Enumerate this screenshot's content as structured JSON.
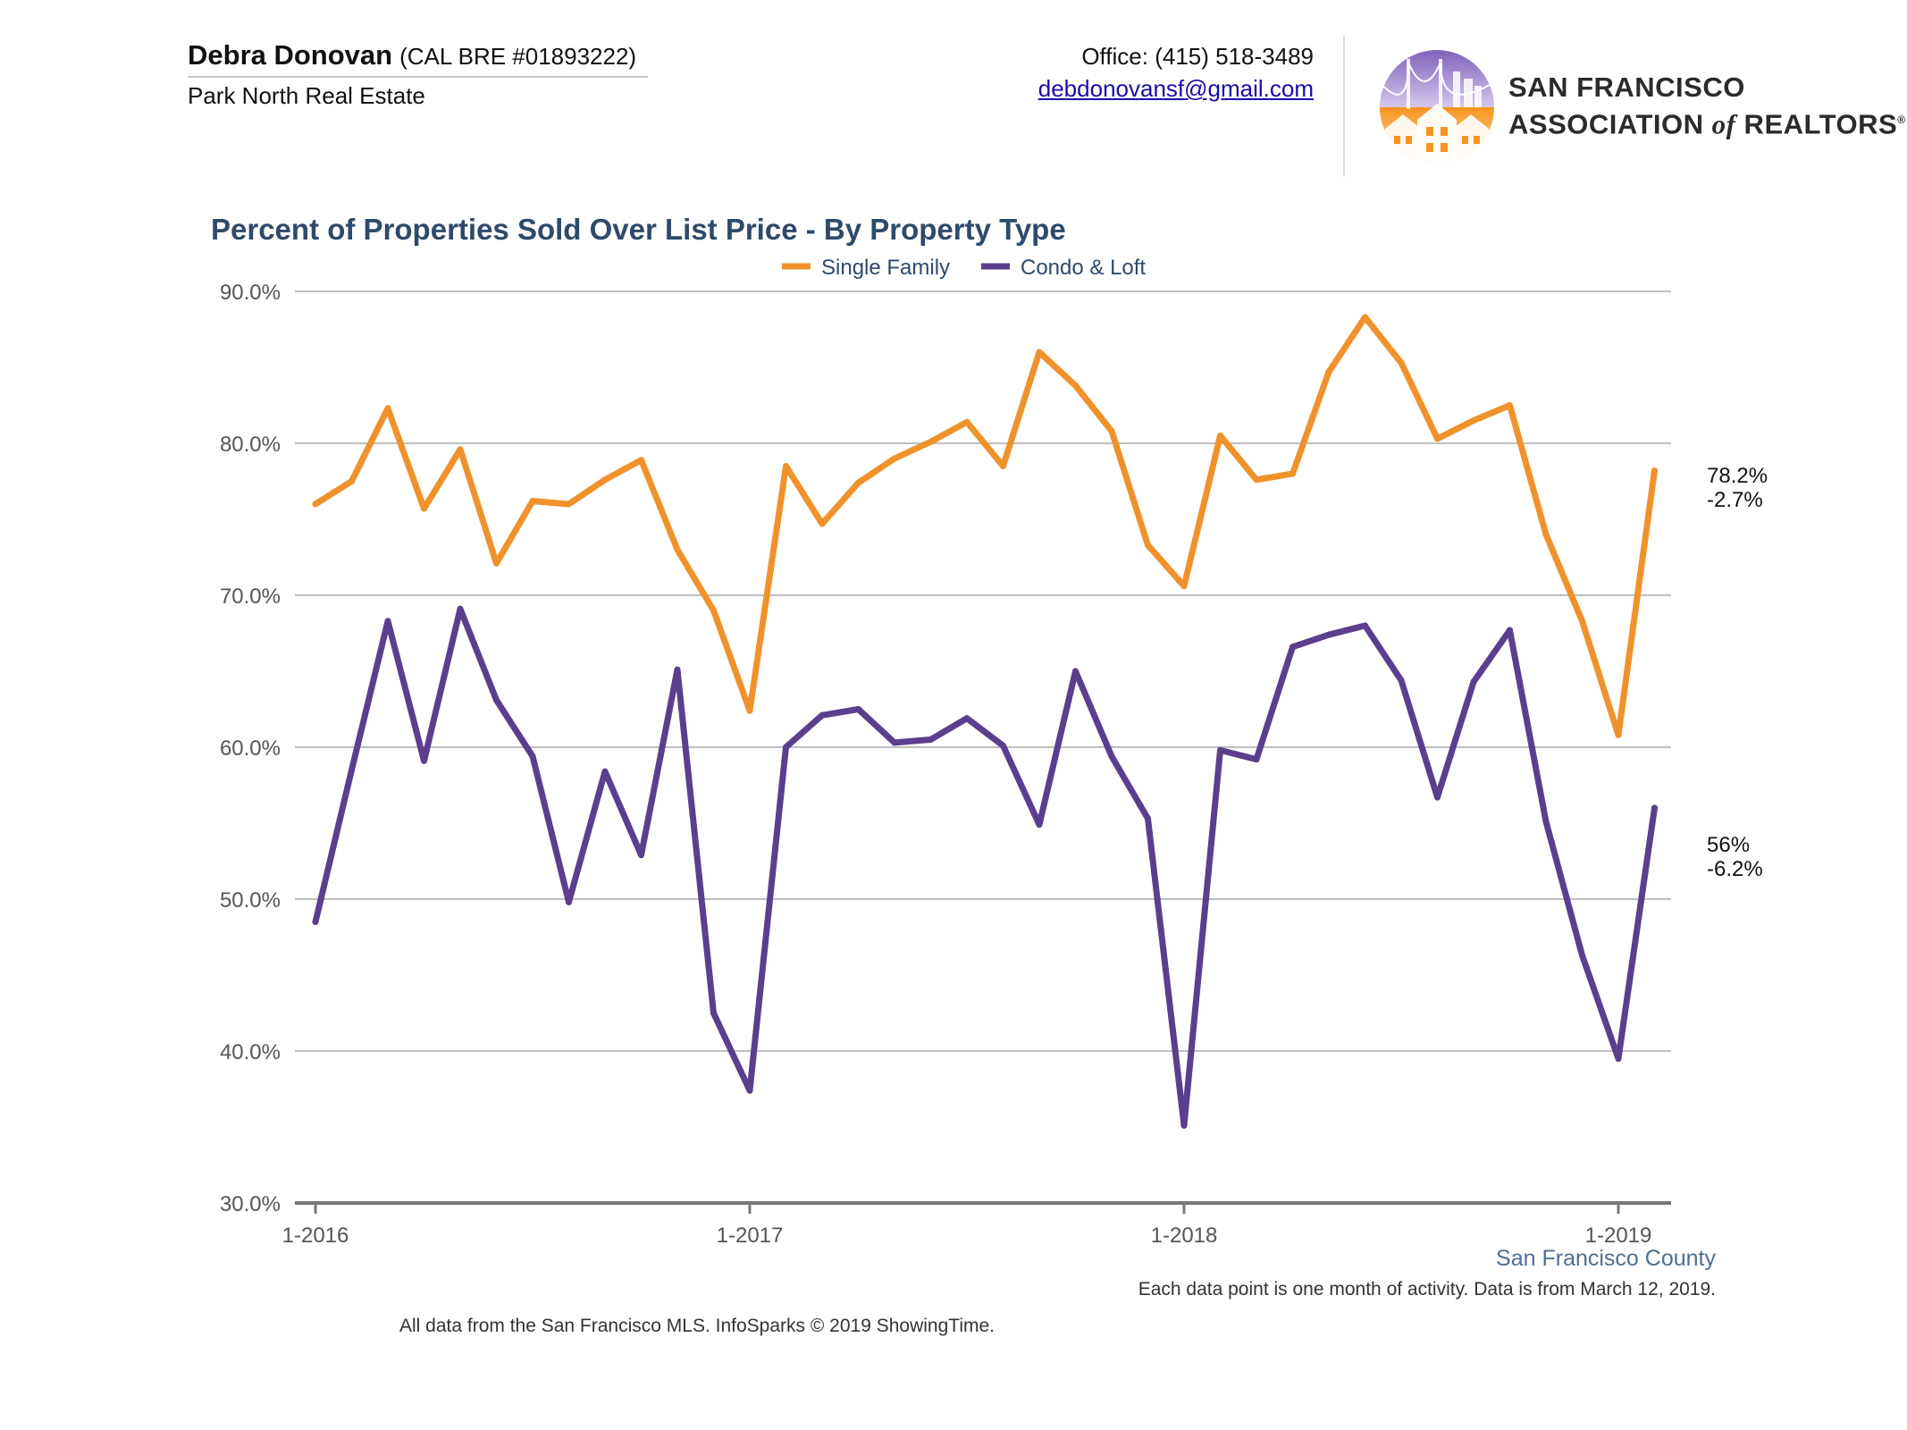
{
  "header": {
    "agent_name": "Debra Donovan",
    "agent_license": "(CAL BRE #01893222)",
    "company": "Park North Real Estate",
    "office_phone": "Office: (415) 518-3489",
    "email": "debdonovansf@gmail.com",
    "logo_line1": "SAN FRANCISCO",
    "logo_line2_a": "ASSOCIATION ",
    "logo_line2_of": "of",
    "logo_line2_b": " REALTORS",
    "logo_reg": "®"
  },
  "colors": {
    "single_family": "#f0922b",
    "condo_loft": "#5b3f8e",
    "title": "#2e4a6b",
    "grid": "#bfbfbf"
  },
  "chart_data": {
    "type": "line",
    "title": "Percent of Properties Sold Over List Price - By Property Type",
    "xlabel": "",
    "ylabel": "",
    "ylim": [
      30,
      90
    ],
    "y_ticks": [
      "30.0%",
      "40.0%",
      "50.0%",
      "60.0%",
      "70.0%",
      "80.0%",
      "90.0%"
    ],
    "x_ticks": [
      "1-2016",
      "1-2017",
      "1-2018",
      "1-2019"
    ],
    "x_start": "2016-01",
    "legend_position": "top-center",
    "grid": true,
    "series": [
      {
        "name": "Single Family",
        "values": [
          76.0,
          77.5,
          82.3,
          75.7,
          79.6,
          72.1,
          76.2,
          76.0,
          77.6,
          78.9,
          73.0,
          69.0,
          62.4,
          78.5,
          74.7,
          77.4,
          79.0,
          80.1,
          81.4,
          78.5,
          86.0,
          83.8,
          80.8,
          73.3,
          70.6,
          80.5,
          77.6,
          78.0,
          84.7,
          88.3,
          85.3,
          80.3,
          81.5,
          82.5,
          74.0,
          68.3,
          60.8,
          78.2
        ],
        "end_label": "78.2%",
        "end_change": "-2.7%"
      },
      {
        "name": "Condo & Loft",
        "values": [
          48.5,
          58.5,
          68.3,
          59.1,
          69.1,
          63.1,
          59.4,
          49.8,
          58.4,
          52.9,
          65.1,
          42.5,
          37.4,
          60.0,
          62.1,
          62.5,
          60.3,
          60.5,
          61.9,
          60.1,
          54.9,
          65.0,
          59.4,
          55.3,
          35.1,
          59.8,
          59.2,
          66.6,
          67.4,
          68.0,
          64.4,
          56.7,
          64.3,
          67.7,
          55.1,
          46.3,
          39.5,
          56.0
        ],
        "end_label": "56%",
        "end_change": "-6.2%"
      }
    ]
  },
  "region": "San Francisco County",
  "footnote": "Each data point is one month of activity. Data is from March 12, 2019.",
  "credit": "All data from the San Francisco MLS. InfoSparks © 2019 ShowingTime."
}
